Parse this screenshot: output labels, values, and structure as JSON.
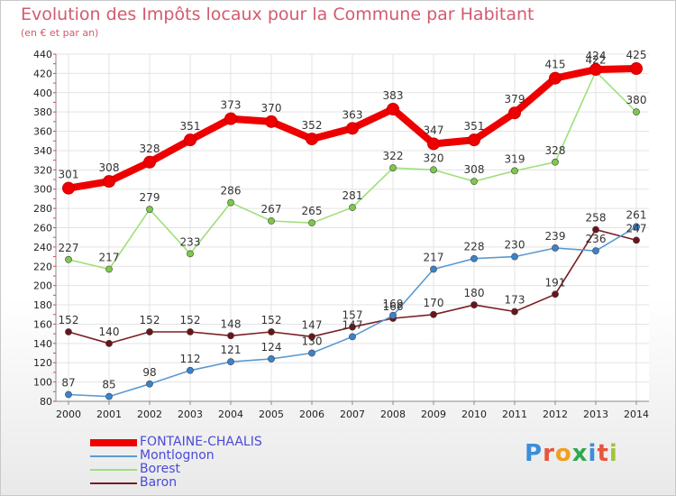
{
  "header": {
    "title": "Evolution des Impôts locaux pour la Commune par Habitant",
    "subtitle": "(en € et par an)"
  },
  "logo": {
    "text": "Proxiti",
    "letter_colors": [
      "#3b8ed8",
      "#e8543c",
      "#f0a020",
      "#2fa84f",
      "#3b8ed8",
      "#e8543c",
      "#9fc53a"
    ]
  },
  "chart_data": {
    "type": "line",
    "x": [
      "2000",
      "2001",
      "2002",
      "2003",
      "2004",
      "2005",
      "2006",
      "2007",
      "2008",
      "2009",
      "2010",
      "2011",
      "2012",
      "2013",
      "2014"
    ],
    "ylim": [
      80,
      440
    ],
    "yticks": [
      "80",
      "100",
      "120",
      "140",
      "160",
      "180",
      "200",
      "220",
      "240",
      "260",
      "280",
      "300",
      "320",
      "340",
      "360",
      "380",
      "400",
      "420",
      "440"
    ],
    "grid": true,
    "legend_position": "bottom-left",
    "series": [
      {
        "name": "Baron",
        "color": "#7a1e22",
        "marker": "#6a1418",
        "values": [
          152,
          140,
          152,
          152,
          148,
          152,
          147,
          157,
          166,
          170,
          180,
          173,
          191,
          258,
          247
        ],
        "labels": [
          "152",
          "140",
          "152",
          "152",
          "148",
          "152",
          "147",
          "157",
          "166",
          "170",
          "180",
          "173",
          "191",
          "258",
          "247"
        ]
      },
      {
        "name": "Montlognon",
        "color": "#5a9ad0",
        "marker": "#3b82cc",
        "values": [
          87,
          85,
          98,
          112,
          121,
          124,
          130,
          147,
          169,
          217,
          228,
          230,
          239,
          236,
          261
        ],
        "labels": [
          "87",
          "85",
          "98",
          "112",
          "121",
          "124",
          "130",
          "147",
          "169",
          "217",
          "228",
          "230",
          "239",
          "236",
          "261"
        ]
      },
      {
        "name": "Borest",
        "color": "#9ee07a",
        "marker": "#7cc84a",
        "values": [
          227,
          217,
          279,
          233,
          286,
          267,
          265,
          281,
          322,
          320,
          308,
          319,
          328,
          422,
          380
        ],
        "labels": [
          "227",
          "217",
          "279",
          "233",
          "286",
          "267",
          "265",
          "281",
          "322",
          "320",
          "308",
          "319",
          "328",
          "422",
          "380"
        ]
      },
      {
        "name": "FONTAINE-CHAALIS",
        "color": "#ee0000",
        "marker": "#ee0000",
        "values": [
          301,
          308,
          328,
          351,
          373,
          370,
          352,
          363,
          383,
          347,
          351,
          379,
          415,
          424,
          425
        ],
        "labels": [
          "301",
          "308",
          "328",
          "351",
          "373",
          "370",
          "352",
          "363",
          "383",
          "347",
          "351",
          "379",
          "415",
          "424",
          "425"
        ]
      }
    ]
  }
}
